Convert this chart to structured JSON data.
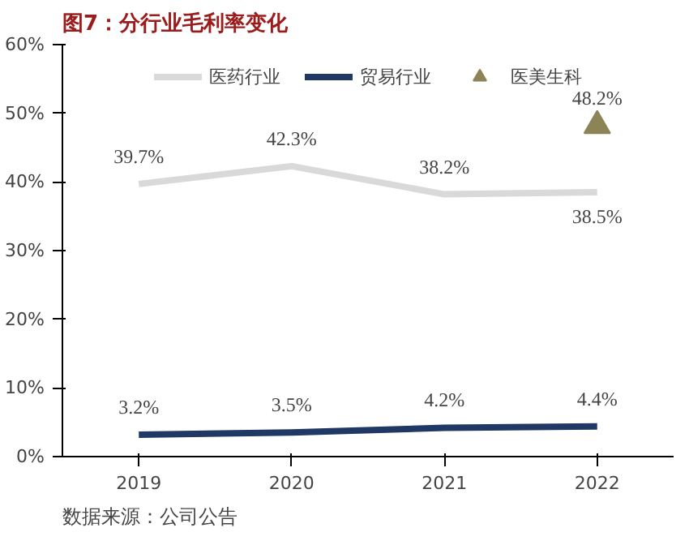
{
  "chart_data": {
    "type": "line",
    "title": "图7：分行业毛利率变化",
    "annotations": [
      "数据来源：公司公告"
    ],
    "categories": [
      "2019",
      "2020",
      "2021",
      "2022"
    ],
    "series": [
      {
        "name": "医药行业",
        "color": "#d9d9d9",
        "values": [
          39.7,
          42.3,
          38.2,
          38.5
        ],
        "value_labels": [
          "39.7%",
          "42.3%",
          "38.2%",
          "38.5%"
        ]
      },
      {
        "name": "贸易行业",
        "color": "#1f3864",
        "values": [
          3.2,
          3.5,
          4.2,
          4.4
        ],
        "value_labels": [
          "3.2%",
          "3.5%",
          "4.2%",
          "4.4%"
        ]
      },
      {
        "name": "医美生科",
        "color": "#8c8357",
        "type": "scatter",
        "marker": "triangle",
        "values": [
          null,
          null,
          null,
          48.2
        ],
        "value_labels": [
          null,
          null,
          null,
          "48.2%"
        ]
      }
    ],
    "ylim": [
      0,
      60
    ],
    "yticks": [
      {
        "value": 0,
        "label": "0%"
      },
      {
        "value": 10,
        "label": "10%"
      },
      {
        "value": 20,
        "label": "20%"
      },
      {
        "value": 30,
        "label": "30%"
      },
      {
        "value": 40,
        "label": "40%"
      },
      {
        "value": 50,
        "label": "50%"
      },
      {
        "value": 60,
        "label": "60%"
      }
    ],
    "grid": false,
    "legend": "top",
    "marker": "none",
    "line_style": "solid"
  }
}
